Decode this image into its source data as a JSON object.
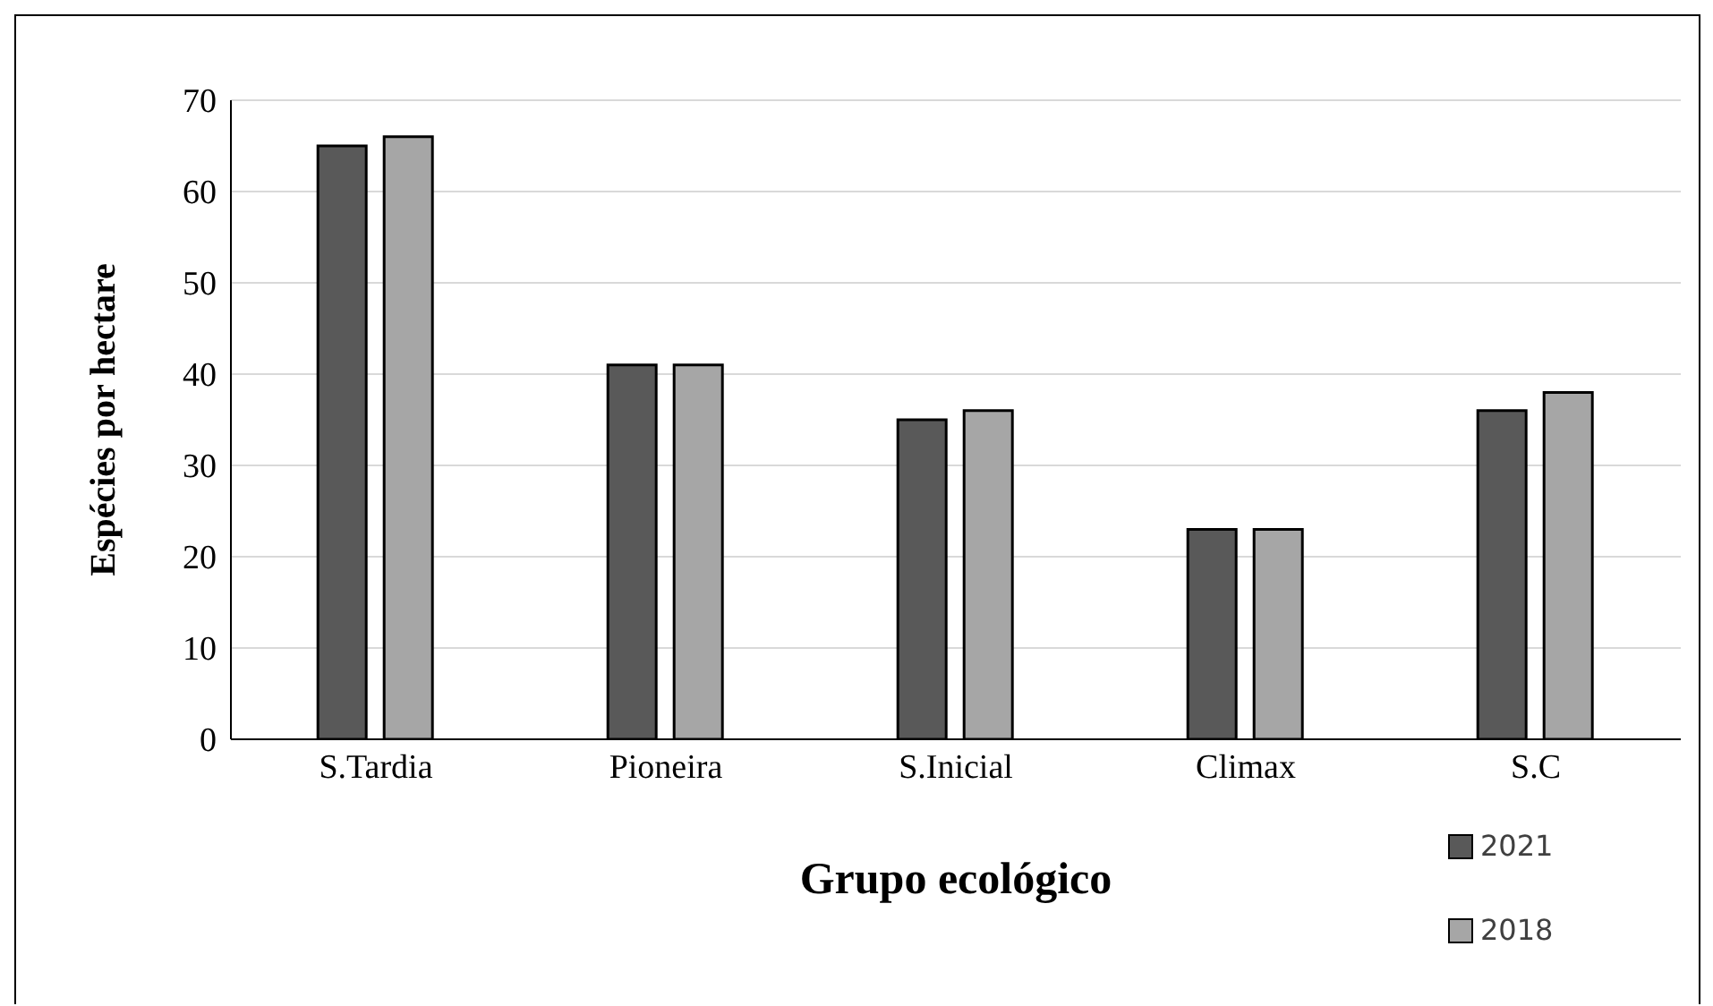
{
  "chart_data": {
    "type": "bar",
    "xlabel": "Grupo ecológico",
    "ylabel": "Espécies por hectare",
    "categories": [
      "S.Tardia",
      "Pioneira",
      "S.Inicial",
      "Climax",
      "S.C"
    ],
    "series": [
      {
        "name": "2021",
        "color": "#595959",
        "values": [
          65,
          41,
          35,
          23,
          36
        ]
      },
      {
        "name": "2018",
        "color": "#a6a6a6",
        "values": [
          66,
          41,
          36,
          23,
          38
        ]
      }
    ],
    "ylim": [
      0,
      70
    ],
    "yticks": [
      0,
      10,
      20,
      30,
      40,
      50,
      60,
      70
    ],
    "grid": "y",
    "legend": "bottom right"
  }
}
